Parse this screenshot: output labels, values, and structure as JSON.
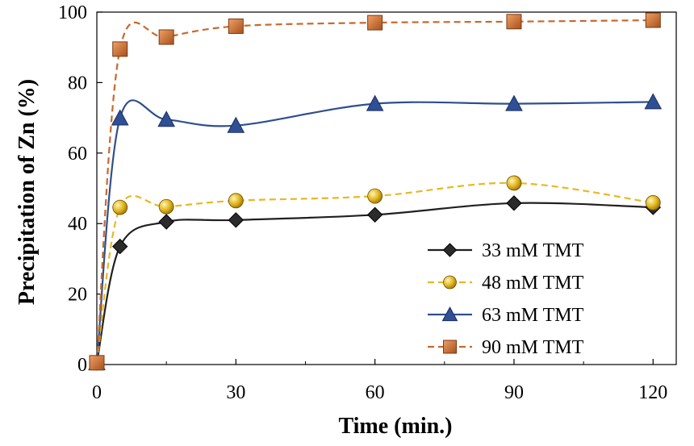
{
  "chart_data": {
    "type": "line",
    "title": "",
    "xlabel": "Time (min.)",
    "ylabel": "Precipitation of Zn (%)",
    "xlim": [
      0,
      125
    ],
    "ylim": [
      0,
      100
    ],
    "xticks": [
      0,
      30,
      60,
      90,
      120
    ],
    "yticks": [
      0,
      20,
      40,
      60,
      80,
      100
    ],
    "x_minor_ticks": [
      15,
      45,
      75,
      105
    ],
    "grid": false,
    "legend_position": "bottom-right",
    "x": [
      0,
      5,
      15,
      30,
      60,
      90,
      120
    ],
    "series": [
      {
        "name": "33 mM TMT",
        "values": [
          0.5,
          33.5,
          40.5,
          41.0,
          42.5,
          45.8,
          44.6
        ],
        "color": "#231f20",
        "marker": "diamond",
        "marker_fill": "#2b2b2b",
        "line_style": "solid"
      },
      {
        "name": "48 mM TMT",
        "values": [
          0.5,
          44.6,
          44.8,
          46.5,
          47.8,
          51.5,
          45.9
        ],
        "color": "#e8b820",
        "marker": "circle",
        "marker_fill": "#d9a814",
        "line_style": "dashed"
      },
      {
        "name": "63 mM TMT",
        "values": [
          0.5,
          69.9,
          69.5,
          67.8,
          74.0,
          74.0,
          74.5
        ],
        "color": "#2e4f8f",
        "marker": "triangle",
        "marker_fill": "#2f4f96",
        "line_style": "solid"
      },
      {
        "name": "90 mM TMT",
        "values": [
          0.5,
          89.5,
          92.9,
          96.0,
          97.0,
          97.3,
          97.7
        ],
        "color": "#c8692a",
        "marker": "square",
        "marker_fill": "#c56a2c",
        "line_style": "dashed"
      }
    ]
  }
}
